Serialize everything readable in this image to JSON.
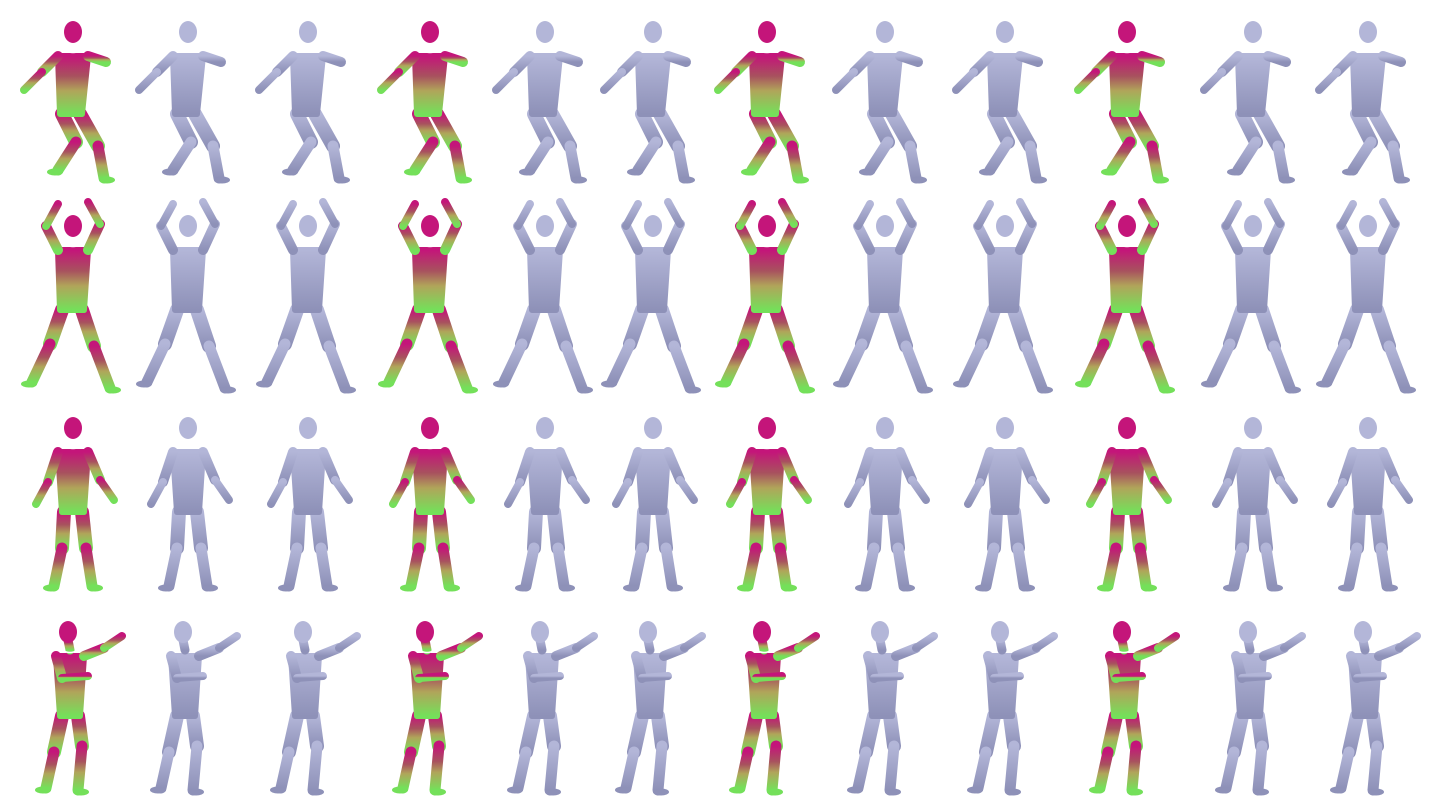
{
  "figure": {
    "rows": 4,
    "columns": 12,
    "background": "#ffffff",
    "column_pattern": [
      "colored-scan",
      "gray-mesh",
      "gray-mesh",
      "colored-scan",
      "gray-mesh",
      "gray-mesh",
      "colored-scan",
      "gray-mesh",
      "gray-mesh",
      "colored-scan",
      "gray-mesh",
      "gray-mesh"
    ],
    "colors": {
      "mesh_gray": "#b3b6d8",
      "mesh_shadow": "#8e91b8",
      "scan_magenta": "#c4157a",
      "scan_rose": "#a8525e",
      "scan_olive": "#b0a55a",
      "scan_green": "#74e05a",
      "seam_white": "#ffffff"
    },
    "row_poses": [
      "kick-stride",
      "arms-raised",
      "standing-arms-down",
      "arm-extended-forward"
    ]
  }
}
